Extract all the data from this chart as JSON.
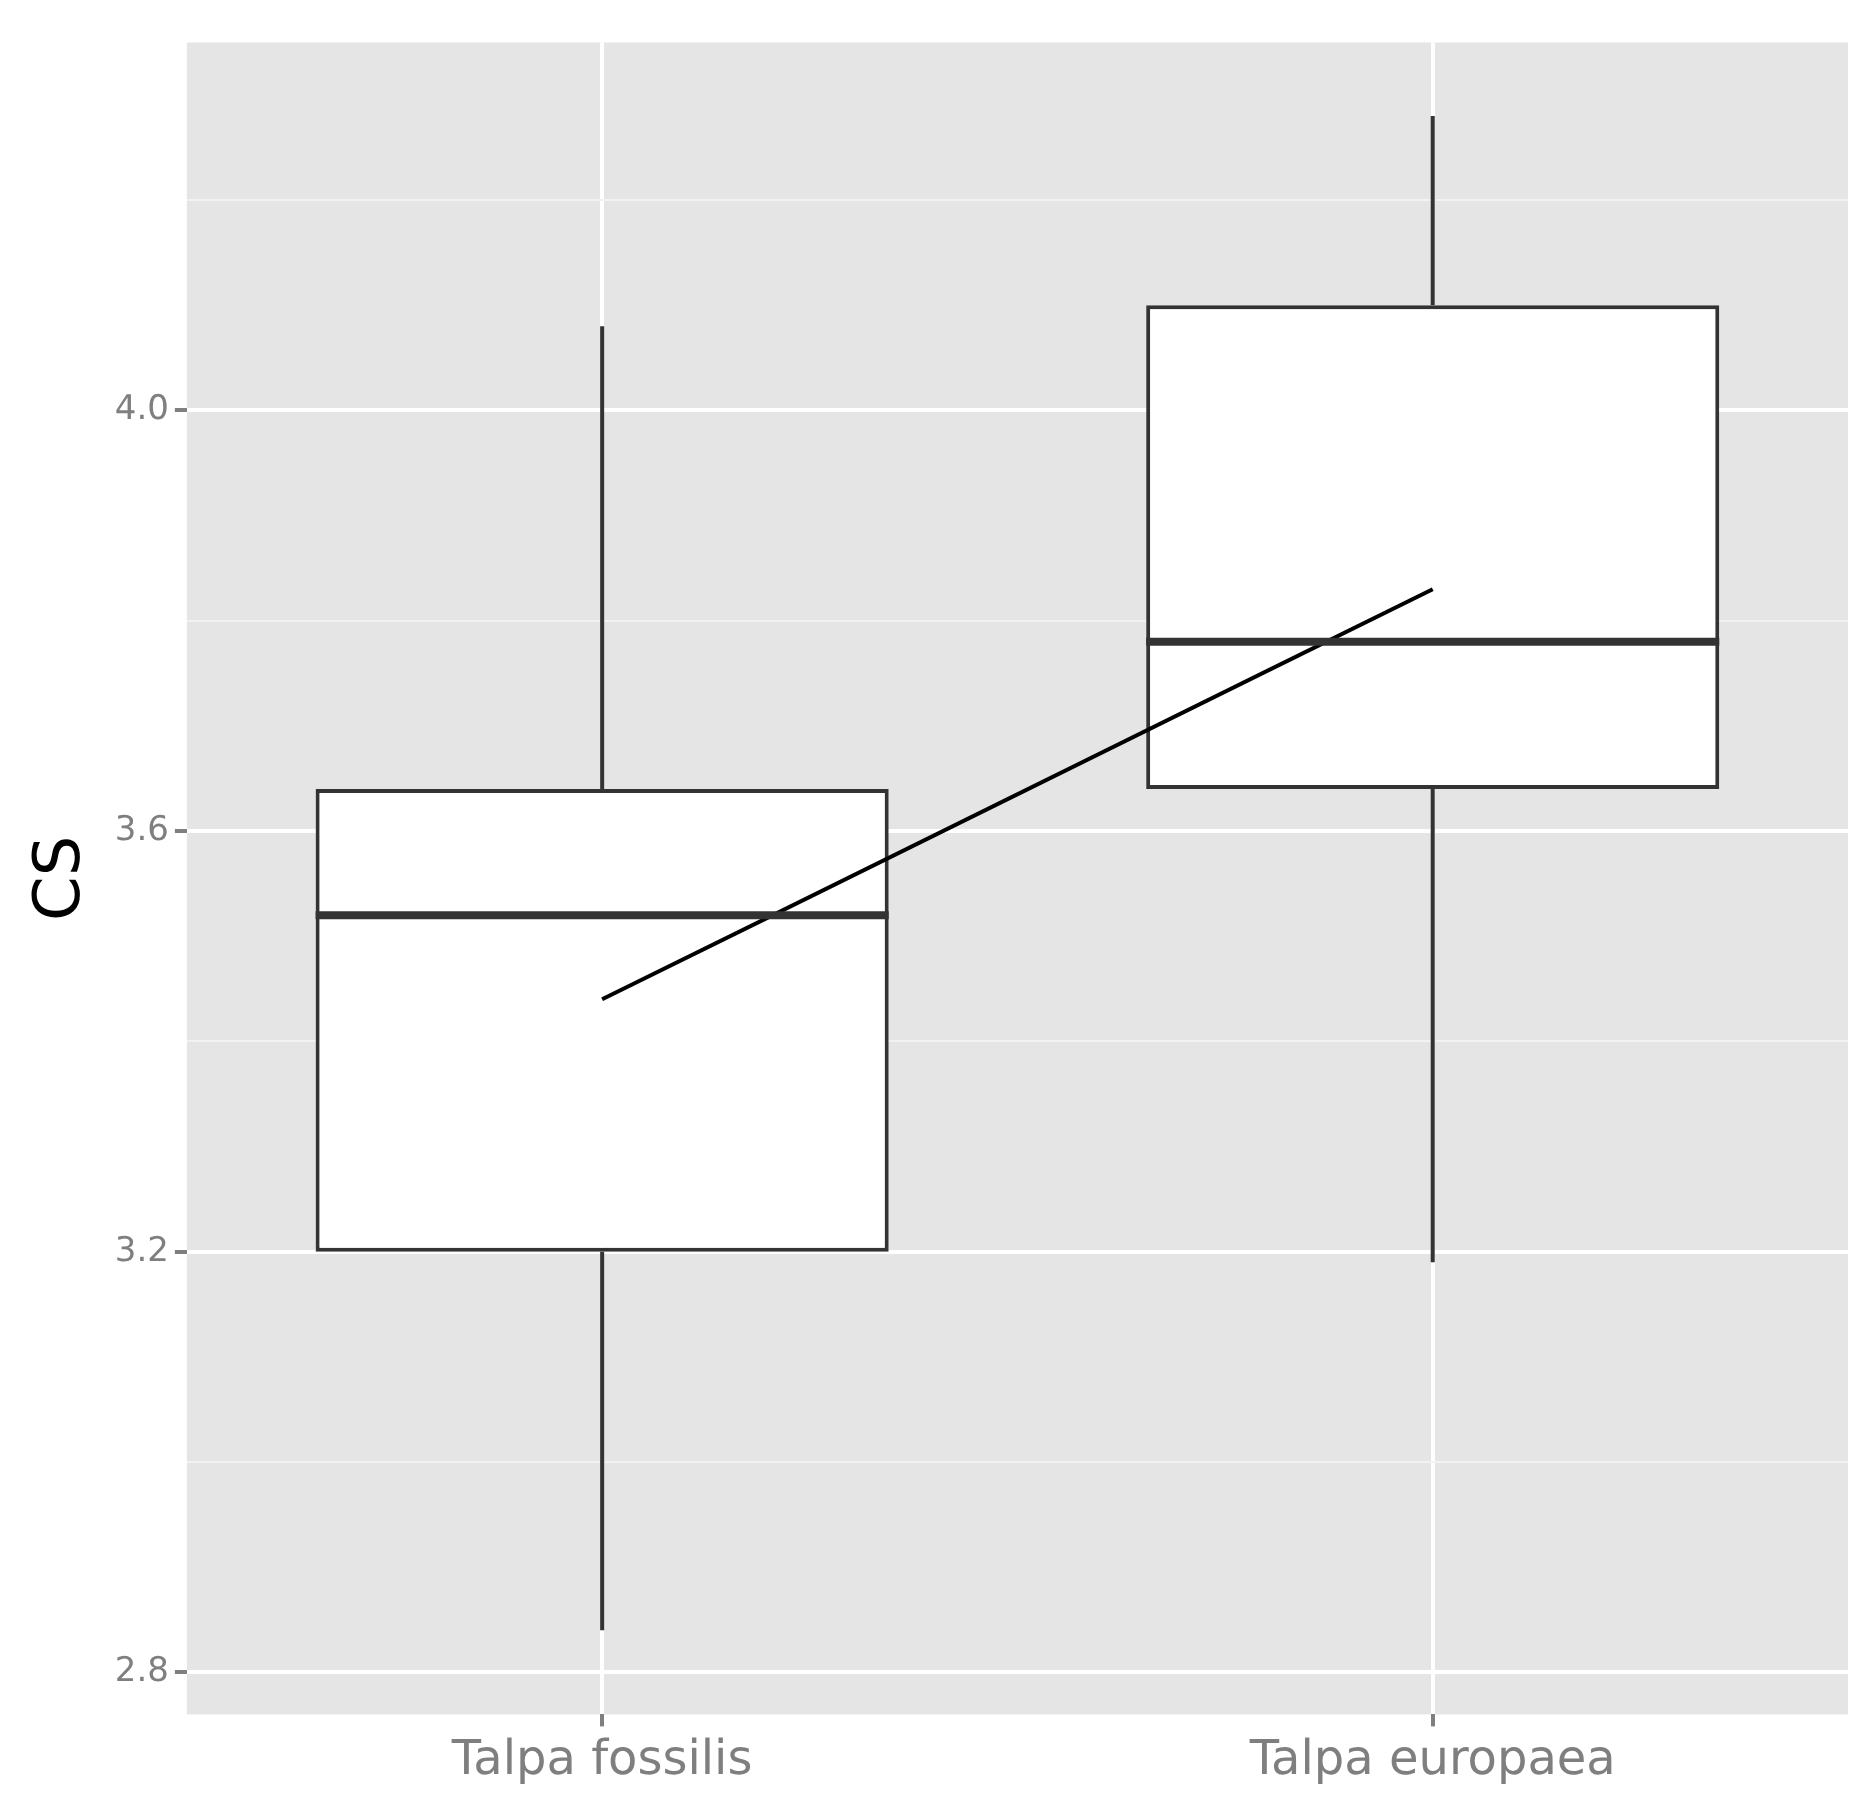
{
  "chart_data": {
    "type": "box",
    "ylabel": "CS",
    "categories": [
      "Talpa fossilis",
      "Talpa europaea"
    ],
    "boxes": [
      {
        "low": 2.84,
        "q1": 3.2,
        "median": 3.52,
        "q3": 3.64,
        "high": 4.08
      },
      {
        "low": 3.19,
        "q1": 3.64,
        "median": 3.78,
        "q3": 4.1,
        "high": 4.28
      }
    ],
    "series": [
      {
        "type": "line",
        "color": "#000000",
        "values": [
          3.44,
          3.83
        ]
      }
    ],
    "marker": "none",
    "ylim": [
      2.76,
      4.35
    ],
    "yticks": [
      {
        "value": 2.8,
        "label": "2.8"
      },
      {
        "value": 3.0,
        "label": null
      },
      {
        "value": 3.2,
        "label": "3.2"
      },
      {
        "value": 3.4,
        "label": null
      },
      {
        "value": 3.6,
        "label": "3.6"
      },
      {
        "value": 3.8,
        "label": null
      },
      {
        "value": 4.0,
        "label": "4.0"
      },
      {
        "value": 4.2,
        "label": null
      }
    ],
    "grid": true,
    "legend": false
  }
}
